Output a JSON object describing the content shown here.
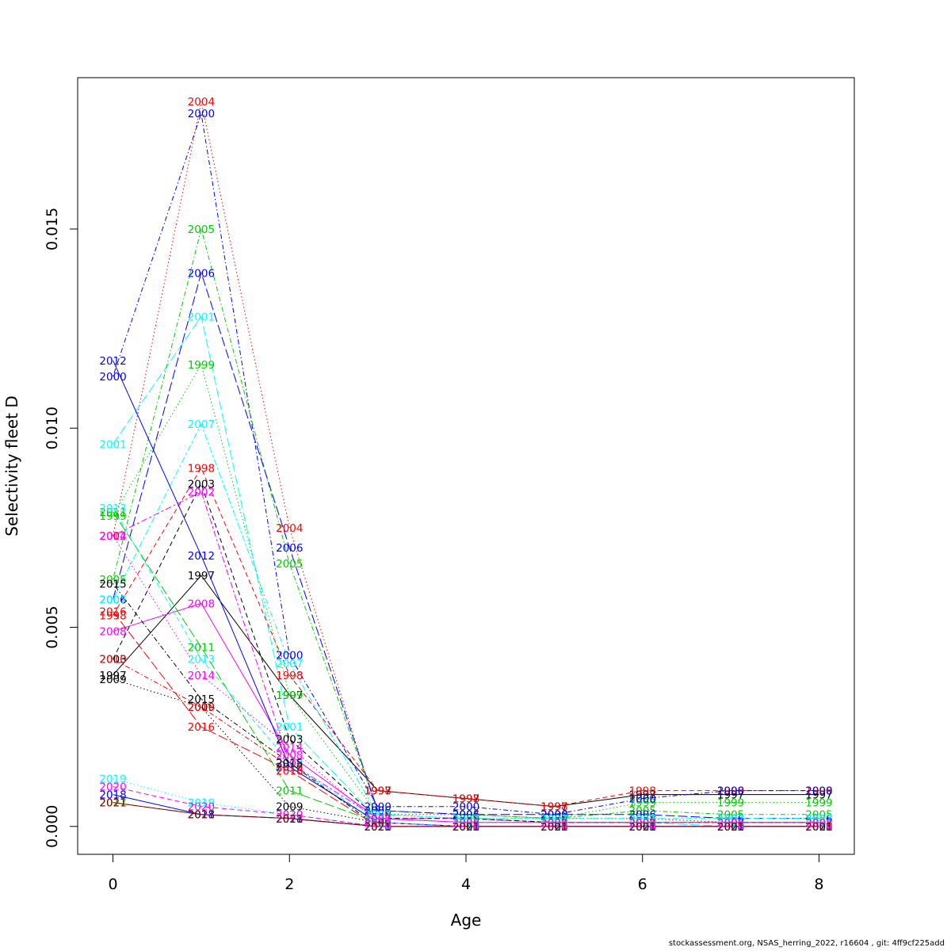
{
  "chart_data": {
    "type": "line",
    "xlabel": "Age",
    "ylabel": "Selectivity fleet D",
    "x": [
      0,
      1,
      2,
      3,
      4,
      5,
      6,
      7,
      8
    ],
    "xlim": [
      -0.4,
      8.4
    ],
    "ylim": [
      -0.0007,
      0.0188
    ],
    "xticks": [
      0,
      2,
      4,
      6,
      8
    ],
    "yticks": [
      0.0,
      0.005,
      0.01,
      0.015
    ],
    "ytick_labels": [
      "0.000",
      "0.005",
      "0.010",
      "0.015"
    ],
    "grid": false,
    "legend": "none",
    "series": [
      {
        "name": "1997",
        "color": "#000000",
        "dash": "solid",
        "values": [
          0.0038,
          0.0063,
          0.0033,
          0.0009,
          0.0007,
          0.0005,
          0.0008,
          0.0008,
          0.0008
        ]
      },
      {
        "name": "1998",
        "color": "#ff0000",
        "dash": "dashed",
        "values": [
          0.0053,
          0.009,
          0.0038,
          0.0009,
          0.0007,
          0.0005,
          0.0009,
          0.0009,
          0.0009
        ]
      },
      {
        "name": "1999",
        "color": "#00cd00",
        "dash": "dotted",
        "values": [
          0.0078,
          0.0116,
          0.0033,
          0.0003,
          0.0002,
          0.0002,
          0.0006,
          0.0006,
          0.0006
        ]
      },
      {
        "name": "2000",
        "color": "#0000ff",
        "dash": "dotdash",
        "values": [
          0.0113,
          0.0179,
          0.0043,
          0.0005,
          0.0005,
          0.0003,
          0.0007,
          0.0009,
          0.0009
        ]
      },
      {
        "name": "2001",
        "color": "#00ffff",
        "dash": "longdash",
        "values": [
          0.0096,
          0.0128,
          0.0025,
          0.0002,
          0.0001,
          0.0001,
          0.0001,
          0.0,
          0.0
        ]
      },
      {
        "name": "2002",
        "color": "#ff00ff",
        "dash": "twodash",
        "values": [
          0.0073,
          0.0084,
          0.0016,
          0.0002,
          0.0002,
          0.0001,
          0.0001,
          0.0001,
          0.0001
        ]
      },
      {
        "name": "2003",
        "color": "#000000",
        "dash": "dashed",
        "values": [
          0.0042,
          0.0086,
          0.0022,
          0.0002,
          0.0002,
          0.0001,
          0.0001,
          0.0001,
          0.0001
        ]
      },
      {
        "name": "2004",
        "color": "#ff0000",
        "dash": "dotted",
        "values": [
          0.0073,
          0.0182,
          0.0075,
          0.0003,
          0.0003,
          0.0002,
          0.0002,
          0.0001,
          0.0001
        ]
      },
      {
        "name": "2005",
        "color": "#00cd00",
        "dash": "dotdash",
        "values": [
          0.0062,
          0.015,
          0.0066,
          0.0004,
          0.0003,
          0.0002,
          0.0004,
          0.0003,
          0.0003
        ]
      },
      {
        "name": "2006",
        "color": "#0000ff",
        "dash": "longdash",
        "values": [
          0.0057,
          0.0139,
          0.007,
          0.0004,
          0.0003,
          0.0003,
          0.0003,
          0.0002,
          0.0002
        ]
      },
      {
        "name": "2007",
        "color": "#00ffff",
        "dash": "twodash",
        "values": [
          0.0057,
          0.0101,
          0.0041,
          0.0003,
          0.0002,
          0.0002,
          0.0002,
          0.0002,
          0.0002
        ]
      },
      {
        "name": "2008",
        "color": "#ff00ff",
        "dash": "solid",
        "values": [
          0.0049,
          0.0056,
          0.0018,
          0.0002,
          0.0001,
          0.0001,
          0.0001,
          0.0001,
          0.0001
        ]
      },
      {
        "name": "2009",
        "color": "#000000",
        "dash": "dotted",
        "values": [
          0.0037,
          0.003,
          0.0005,
          0.0001,
          0.0,
          0.0,
          0.0,
          0.0,
          0.0
        ]
      },
      {
        "name": "2010",
        "color": "#ff0000",
        "dash": "dotdash",
        "values": [
          0.0042,
          0.003,
          0.0015,
          0.0001,
          0.0,
          0.0,
          0.0,
          0.0,
          0.0
        ]
      },
      {
        "name": "2011",
        "color": "#00cd00",
        "dash": "longdash",
        "values": [
          0.0079,
          0.0045,
          0.0009,
          0.0001,
          0.0,
          0.0,
          0.0,
          0.0,
          0.0
        ]
      },
      {
        "name": "2012",
        "color": "#0000ff",
        "dash": "solid",
        "values": [
          0.0117,
          0.0068,
          0.0015,
          0.0001,
          0.0,
          0.0,
          0.0,
          0.0,
          0.0
        ]
      },
      {
        "name": "2013",
        "color": "#00ffff",
        "dash": "dashed",
        "values": [
          0.008,
          0.0042,
          0.0016,
          0.0001,
          0.0,
          0.0,
          0.0,
          0.0,
          0.0
        ]
      },
      {
        "name": "2014",
        "color": "#ff00ff",
        "dash": "dotted",
        "values": [
          0.0073,
          0.0038,
          0.002,
          0.0001,
          0.0,
          0.0,
          0.0,
          0.0,
          0.0
        ]
      },
      {
        "name": "2015",
        "color": "#000000",
        "dash": "dotdash",
        "values": [
          0.0061,
          0.0032,
          0.0016,
          0.0,
          0.0,
          0.0,
          0.0,
          0.0,
          0.0
        ]
      },
      {
        "name": "2016",
        "color": "#ff0000",
        "dash": "longdash",
        "values": [
          0.0054,
          0.0025,
          0.0014,
          0.0,
          0.0,
          0.0,
          0.0,
          0.0,
          0.0
        ]
      },
      {
        "name": "2017",
        "color": "#00cd00",
        "dash": "twodash",
        "values": [
          0.0006,
          0.0003,
          0.0002,
          0.0,
          0.0,
          0.0,
          0.0,
          0.0,
          0.0
        ]
      },
      {
        "name": "2018",
        "color": "#0000ff",
        "dash": "solid",
        "values": [
          0.0008,
          0.0003,
          0.0002,
          0.0,
          0.0,
          0.0,
          0.0,
          0.0,
          0.0
        ]
      },
      {
        "name": "2019",
        "color": "#00ffff",
        "dash": "dotted",
        "values": [
          0.0012,
          0.0006,
          0.0003,
          0.0,
          0.0,
          0.0,
          0.0,
          0.0,
          0.0
        ]
      },
      {
        "name": "2020",
        "color": "#ff00ff",
        "dash": "dashed",
        "values": [
          0.001,
          0.0005,
          0.0003,
          0.0,
          0.0,
          0.0,
          0.0,
          0.0,
          0.0
        ]
      },
      {
        "name": "2021",
        "color": "#8b0000",
        "dash": "solid",
        "values": [
          0.0006,
          0.0003,
          0.0002,
          0.0,
          0.0,
          0.0,
          0.0,
          0.0,
          0.0
        ]
      }
    ]
  },
  "footer": {
    "text": "stockassessment.org, NSAS_herring_2022, r16604 , git: 4ff9cf225add"
  }
}
